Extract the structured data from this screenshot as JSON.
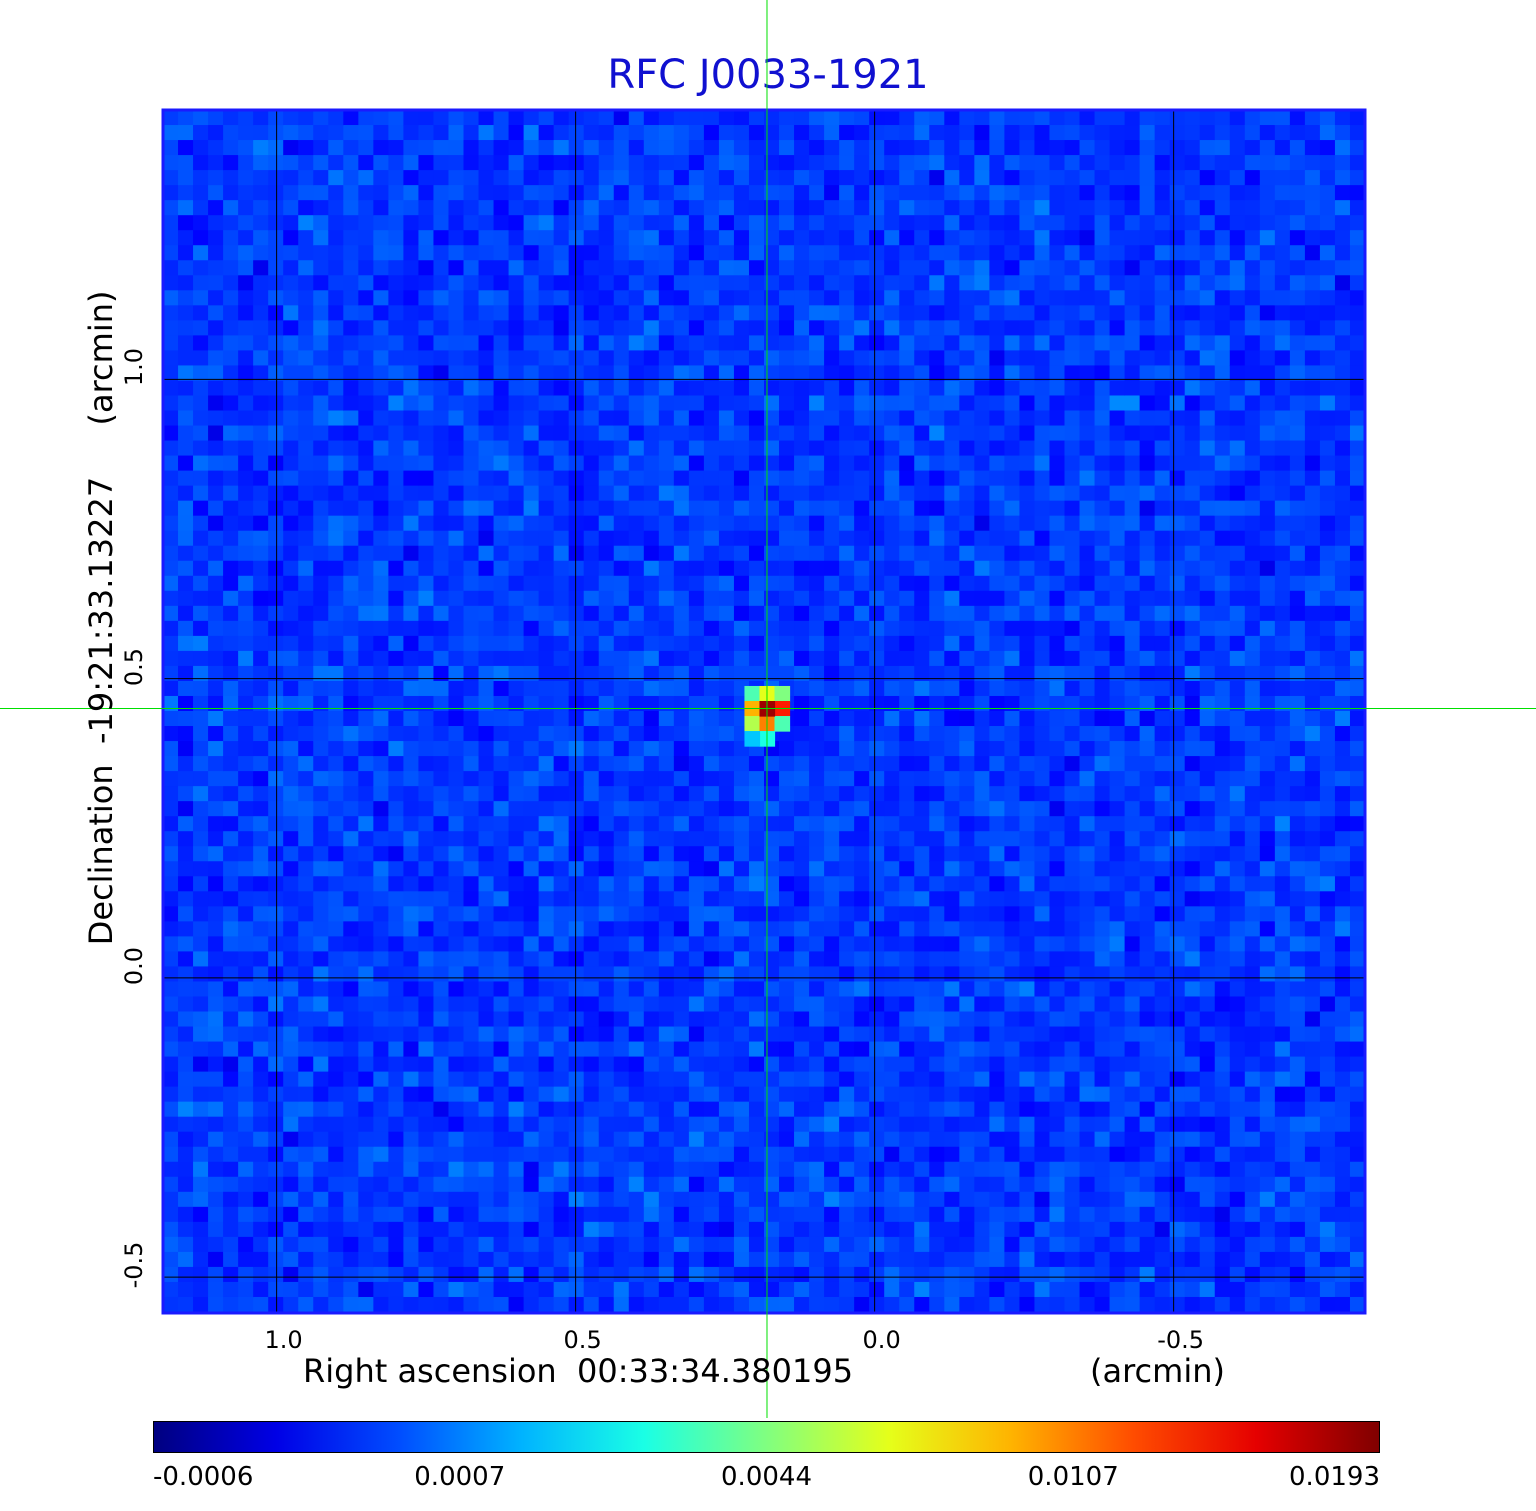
{
  "chart_data": {
    "type": "heatmap",
    "title": "RFC J0033-1921",
    "xlabel": "Right ascension  00:33:34.380195",
    "xunit": "(arcmin)",
    "ylabel": "Declination  -19:21:33.13227",
    "yunit": "(arcmin)",
    "x_range": [
      1.19,
      -0.82
    ],
    "y_range": [
      -0.56,
      1.45
    ],
    "x_ticks": [
      {
        "value": 1.0,
        "label": "1.0"
      },
      {
        "value": 0.5,
        "label": "0.5"
      },
      {
        "value": 0.0,
        "label": "0.0"
      },
      {
        "value": -0.5,
        "label": "-0.5"
      }
    ],
    "y_ticks": [
      {
        "value": 1.0,
        "label": "1.0"
      },
      {
        "value": 0.5,
        "label": "0.5"
      },
      {
        "value": 0.0,
        "label": "0.0"
      },
      {
        "value": -0.5,
        "label": "-0.5"
      }
    ],
    "grid": true,
    "crosshair": {
      "x": 0.18,
      "y": 0.45,
      "color": "#00e000"
    },
    "source_peak": {
      "x": 0.18,
      "y": 0.45,
      "value": 0.0193
    },
    "colorbar": {
      "colormap": "jet",
      "labels": [
        "-0.0006",
        "0.0007",
        "0.0044",
        "0.0107",
        "0.0193"
      ]
    },
    "colors": {
      "title": "#1010d0",
      "frame": "#1a1aff",
      "grid": "#000000",
      "background_pixel": "#1e5cf0"
    }
  }
}
